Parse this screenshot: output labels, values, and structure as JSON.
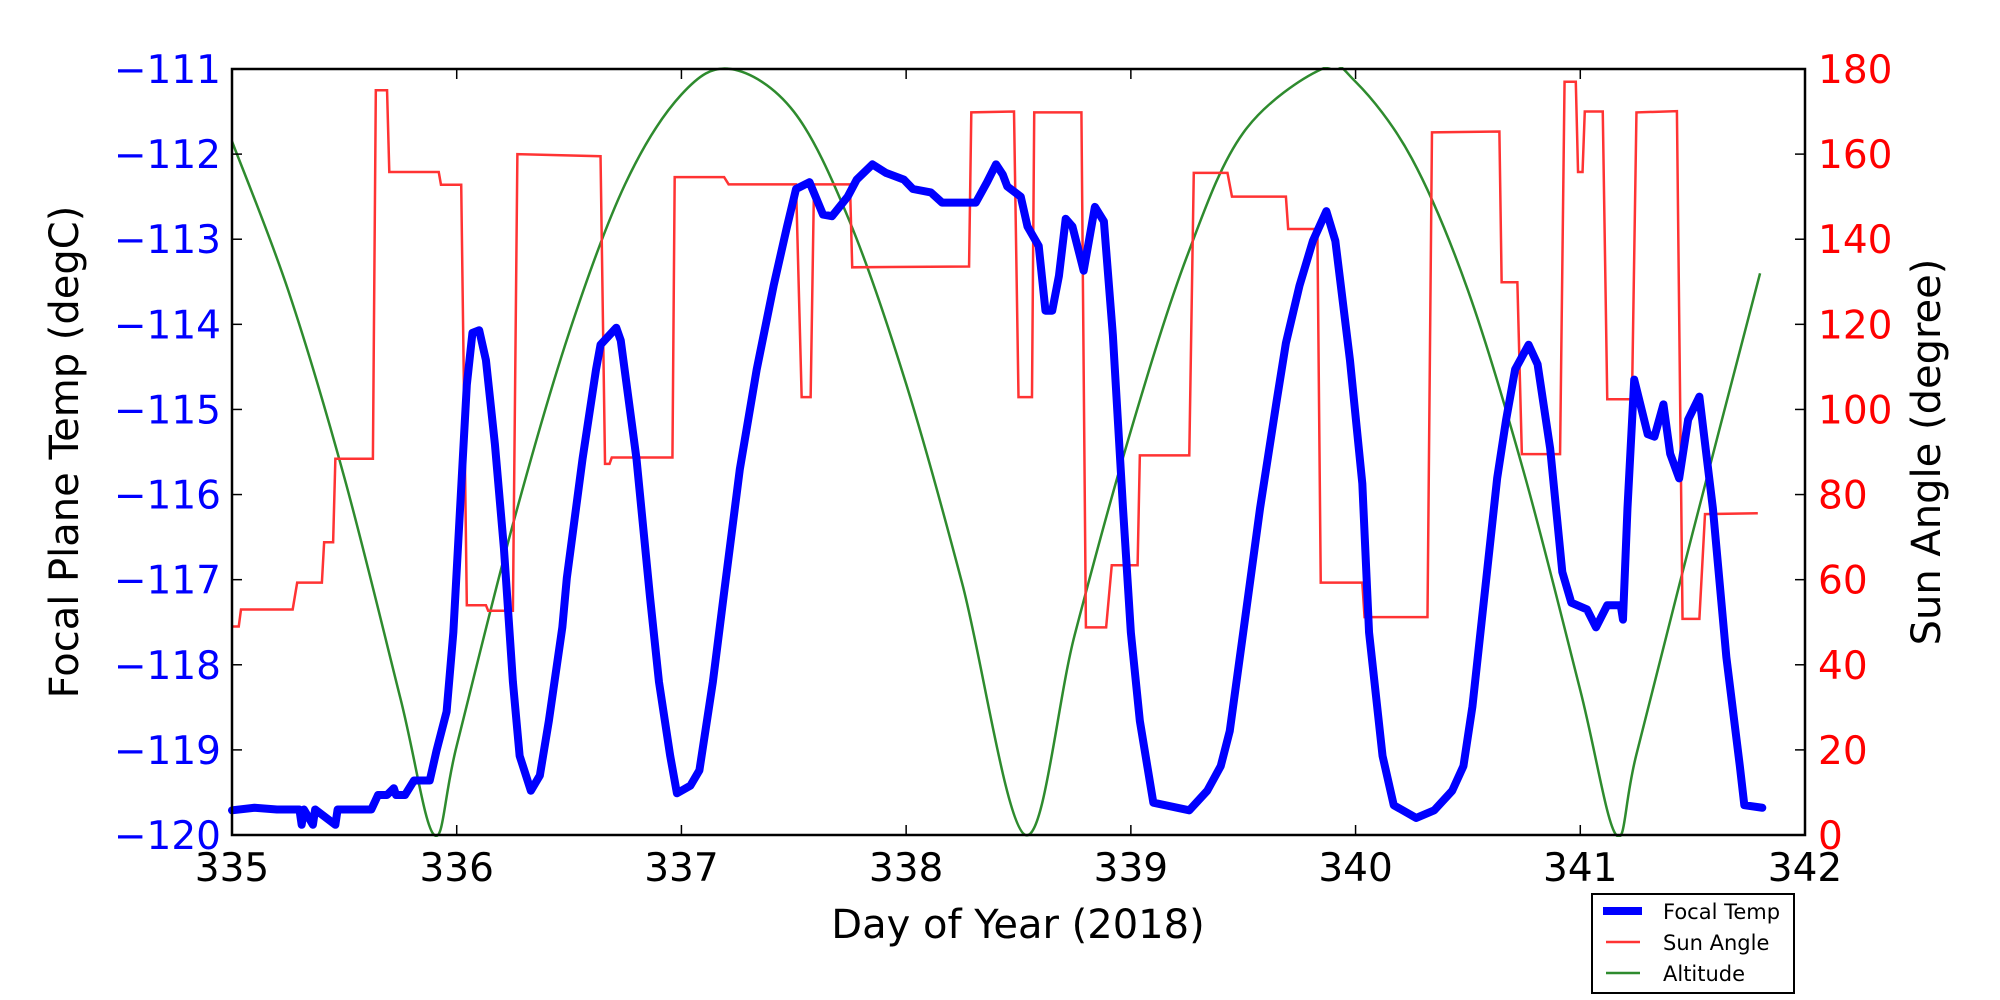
{
  "chart_data": {
    "type": "line",
    "title": "",
    "xlabel": "Day of Year (2018)",
    "ylabel_left": "Focal Plane Temp (degC)",
    "ylabel_right": "Sun Angle (degree)",
    "xlim": [
      335,
      342
    ],
    "ylim_left": [
      -120,
      -111
    ],
    "ylim_right": [
      0,
      180
    ],
    "x_ticks": [
      "335",
      "336",
      "337",
      "338",
      "339",
      "340",
      "341",
      "342"
    ],
    "y_ticks_left": [
      "−120",
      "−119",
      "−118",
      "−117",
      "−116",
      "−115",
      "−114",
      "−113",
      "−112",
      "−111"
    ],
    "y_ticks_right": [
      "0",
      "20",
      "40",
      "60",
      "80",
      "100",
      "120",
      "140",
      "160",
      "180"
    ],
    "grid": false,
    "legend_position": "below-right, outside plot",
    "colors": {
      "left_axis": "#0000ff",
      "right_axis": "#ff0000",
      "axes": "#000000"
    },
    "series": [
      {
        "name": "Focal Temp",
        "axis": "left",
        "color": "#0000ff",
        "points": [
          [
            335.0,
            -119.71
          ],
          [
            335.1,
            -119.68
          ],
          [
            335.2,
            -119.7
          ],
          [
            335.3,
            -119.7
          ],
          [
            335.31,
            -119.88
          ],
          [
            335.32,
            -119.7
          ],
          [
            335.36,
            -119.88
          ],
          [
            335.37,
            -119.7
          ],
          [
            335.46,
            -119.88
          ],
          [
            335.47,
            -119.7
          ],
          [
            335.62,
            -119.7
          ],
          [
            335.65,
            -119.53
          ],
          [
            335.69,
            -119.53
          ],
          [
            335.72,
            -119.45
          ],
          [
            335.73,
            -119.53
          ],
          [
            335.77,
            -119.53
          ],
          [
            335.81,
            -119.36
          ],
          [
            335.88,
            -119.36
          ],
          [
            335.91,
            -119.01
          ],
          [
            335.955,
            -118.55
          ],
          [
            335.985,
            -117.62
          ],
          [
            336.015,
            -116.16
          ],
          [
            336.045,
            -114.71
          ],
          [
            336.07,
            -114.1
          ],
          [
            336.1,
            -114.07
          ],
          [
            336.13,
            -114.42
          ],
          [
            336.17,
            -115.41
          ],
          [
            336.21,
            -116.63
          ],
          [
            336.25,
            -118.2
          ],
          [
            336.28,
            -119.07
          ],
          [
            336.33,
            -119.48
          ],
          [
            336.37,
            -119.3
          ],
          [
            336.41,
            -118.66
          ],
          [
            336.47,
            -117.56
          ],
          [
            336.49,
            -116.98
          ],
          [
            336.56,
            -115.58
          ],
          [
            336.62,
            -114.53
          ],
          [
            336.64,
            -114.24
          ],
          [
            336.71,
            -114.04
          ],
          [
            336.73,
            -114.19
          ],
          [
            336.8,
            -115.58
          ],
          [
            336.86,
            -117.2
          ],
          [
            336.9,
            -118.2
          ],
          [
            336.95,
            -119.07
          ],
          [
            336.98,
            -119.51
          ],
          [
            337.04,
            -119.42
          ],
          [
            337.08,
            -119.24
          ],
          [
            337.14,
            -118.2
          ],
          [
            337.19,
            -117.15
          ],
          [
            337.26,
            -115.7
          ],
          [
            337.335,
            -114.53
          ],
          [
            337.41,
            -113.55
          ],
          [
            337.47,
            -112.85
          ],
          [
            337.51,
            -112.41
          ],
          [
            337.57,
            -112.33
          ],
          [
            337.63,
            -112.71
          ],
          [
            337.67,
            -112.73
          ],
          [
            337.74,
            -112.5
          ],
          [
            337.78,
            -112.3
          ],
          [
            337.85,
            -112.12
          ],
          [
            337.91,
            -112.22
          ],
          [
            337.99,
            -112.3
          ],
          [
            338.03,
            -112.41
          ],
          [
            338.11,
            -112.45
          ],
          [
            338.16,
            -112.57
          ],
          [
            338.31,
            -112.57
          ],
          [
            338.36,
            -112.33
          ],
          [
            338.4,
            -112.12
          ],
          [
            338.43,
            -112.24
          ],
          [
            338.45,
            -112.38
          ],
          [
            338.51,
            -112.5
          ],
          [
            338.54,
            -112.85
          ],
          [
            338.59,
            -113.08
          ],
          [
            338.62,
            -113.84
          ],
          [
            338.65,
            -113.84
          ],
          [
            338.68,
            -113.43
          ],
          [
            338.71,
            -112.76
          ],
          [
            338.74,
            -112.85
          ],
          [
            338.79,
            -113.37
          ],
          [
            338.84,
            -112.62
          ],
          [
            338.88,
            -112.79
          ],
          [
            338.92,
            -114.13
          ],
          [
            338.965,
            -116.16
          ],
          [
            339.0,
            -117.62
          ],
          [
            339.04,
            -118.66
          ],
          [
            339.1,
            -119.62
          ],
          [
            339.26,
            -119.71
          ],
          [
            339.34,
            -119.48
          ],
          [
            339.4,
            -119.19
          ],
          [
            339.44,
            -118.78
          ],
          [
            339.5,
            -117.62
          ],
          [
            339.575,
            -116.16
          ],
          [
            339.65,
            -114.88
          ],
          [
            339.69,
            -114.22
          ],
          [
            339.75,
            -113.55
          ],
          [
            339.81,
            -113.02
          ],
          [
            339.87,
            -112.67
          ],
          [
            339.91,
            -113.02
          ],
          [
            339.975,
            -114.42
          ],
          [
            340.03,
            -115.87
          ],
          [
            340.06,
            -117.62
          ],
          [
            340.12,
            -119.07
          ],
          [
            340.17,
            -119.65
          ],
          [
            340.27,
            -119.8
          ],
          [
            340.35,
            -119.71
          ],
          [
            340.43,
            -119.48
          ],
          [
            340.48,
            -119.19
          ],
          [
            340.52,
            -118.49
          ],
          [
            340.58,
            -117.03
          ],
          [
            340.63,
            -115.81
          ],
          [
            340.67,
            -115.12
          ],
          [
            340.71,
            -114.53
          ],
          [
            340.77,
            -114.24
          ],
          [
            340.81,
            -114.47
          ],
          [
            340.866,
            -115.46
          ],
          [
            340.92,
            -116.91
          ],
          [
            340.96,
            -117.27
          ],
          [
            341.03,
            -117.35
          ],
          [
            341.07,
            -117.56
          ],
          [
            341.12,
            -117.3
          ],
          [
            341.18,
            -117.3
          ],
          [
            341.19,
            -117.47
          ],
          [
            341.21,
            -116.16
          ],
          [
            341.24,
            -114.65
          ],
          [
            341.3,
            -115.29
          ],
          [
            341.33,
            -115.32
          ],
          [
            341.37,
            -114.94
          ],
          [
            341.4,
            -115.52
          ],
          [
            341.44,
            -115.81
          ],
          [
            341.48,
            -115.12
          ],
          [
            341.53,
            -114.85
          ],
          [
            341.59,
            -116.16
          ],
          [
            341.65,
            -117.91
          ],
          [
            341.71,
            -119.19
          ],
          [
            341.73,
            -119.65
          ],
          [
            341.81,
            -119.68
          ]
        ]
      },
      {
        "name": "Sun Angle",
        "axis": "right",
        "color": "#ff0000",
        "points": [
          [
            335.0,
            49
          ],
          [
            335.03,
            49
          ],
          [
            335.04,
            53
          ],
          [
            335.27,
            53
          ],
          [
            335.29,
            59.3
          ],
          [
            335.4,
            59.3
          ],
          [
            335.41,
            68.8
          ],
          [
            335.45,
            68.8
          ],
          [
            335.46,
            88.4
          ],
          [
            335.627,
            88.4
          ],
          [
            335.64,
            175
          ],
          [
            335.69,
            175
          ],
          [
            335.7,
            155.8
          ],
          [
            335.92,
            155.8
          ],
          [
            335.93,
            152.8
          ],
          [
            336.02,
            152.8
          ],
          [
            336.045,
            54
          ],
          [
            336.13,
            54
          ],
          [
            336.14,
            52.7
          ],
          [
            336.25,
            52.7
          ],
          [
            336.27,
            160
          ],
          [
            336.64,
            159.5
          ],
          [
            336.66,
            87.2
          ],
          [
            336.68,
            87.2
          ],
          [
            336.69,
            88.7
          ],
          [
            336.96,
            88.7
          ],
          [
            336.97,
            154.6
          ],
          [
            337.19,
            154.6
          ],
          [
            337.21,
            152.9
          ],
          [
            337.51,
            152.9
          ],
          [
            337.535,
            102.9
          ],
          [
            337.575,
            102.9
          ],
          [
            337.59,
            152.9
          ],
          [
            337.75,
            152.9
          ],
          [
            337.76,
            133.4
          ],
          [
            338.28,
            133.6
          ],
          [
            338.29,
            169.8
          ],
          [
            338.48,
            170
          ],
          [
            338.5,
            102.9
          ],
          [
            338.56,
            102.9
          ],
          [
            338.57,
            169.8
          ],
          [
            338.78,
            169.8
          ],
          [
            338.8,
            48.8
          ],
          [
            338.89,
            48.8
          ],
          [
            338.915,
            63.4
          ],
          [
            339.03,
            63.4
          ],
          [
            339.04,
            89.2
          ],
          [
            339.26,
            89.2
          ],
          [
            339.28,
            155.6
          ],
          [
            339.43,
            155.6
          ],
          [
            339.45,
            150
          ],
          [
            339.69,
            150
          ],
          [
            339.7,
            142.4
          ],
          [
            339.83,
            142.4
          ],
          [
            339.845,
            59.3
          ],
          [
            340.03,
            59.3
          ],
          [
            340.04,
            51.2
          ],
          [
            340.32,
            51.2
          ],
          [
            340.34,
            165.1
          ],
          [
            340.64,
            165.3
          ],
          [
            340.65,
            129.9
          ],
          [
            340.72,
            129.9
          ],
          [
            340.74,
            89.5
          ],
          [
            340.91,
            89.5
          ],
          [
            340.93,
            177
          ],
          [
            340.98,
            177
          ],
          [
            340.99,
            155.8
          ],
          [
            341.01,
            155.8
          ],
          [
            341.02,
            170
          ],
          [
            341.1,
            170
          ],
          [
            341.12,
            102.4
          ],
          [
            341.23,
            102.4
          ],
          [
            341.25,
            169.8
          ],
          [
            341.43,
            170.1
          ],
          [
            341.455,
            50.8
          ],
          [
            341.53,
            50.8
          ],
          [
            341.555,
            75.4
          ],
          [
            341.79,
            75.6
          ]
        ]
      },
      {
        "name": "Altitude",
        "axis": "right (unscaled, no own axis)",
        "color": "#228b22",
        "points": [
          [
            335.0,
            163
          ],
          [
            335.25,
            128
          ],
          [
            335.5,
            84
          ],
          [
            335.75,
            32
          ],
          [
            335.9,
            0
          ],
          [
            336.0,
            21
          ],
          [
            336.25,
            73
          ],
          [
            336.5,
            118
          ],
          [
            336.75,
            153
          ],
          [
            337.0,
            174
          ],
          [
            337.22,
            180
          ],
          [
            337.5,
            170
          ],
          [
            337.75,
            144
          ],
          [
            338.0,
            106
          ],
          [
            338.25,
            59
          ],
          [
            338.53,
            0
          ],
          [
            338.75,
            47
          ],
          [
            339.0,
            95
          ],
          [
            339.25,
            136
          ],
          [
            339.5,
            165
          ],
          [
            339.85,
            180
          ],
          [
            340.0,
            177
          ],
          [
            340.25,
            159
          ],
          [
            340.5,
            128
          ],
          [
            340.75,
            85
          ],
          [
            341.0,
            34
          ],
          [
            341.16,
            0
          ],
          [
            341.25,
            19
          ],
          [
            341.5,
            71
          ],
          [
            341.8,
            132
          ]
        ]
      }
    ]
  }
}
